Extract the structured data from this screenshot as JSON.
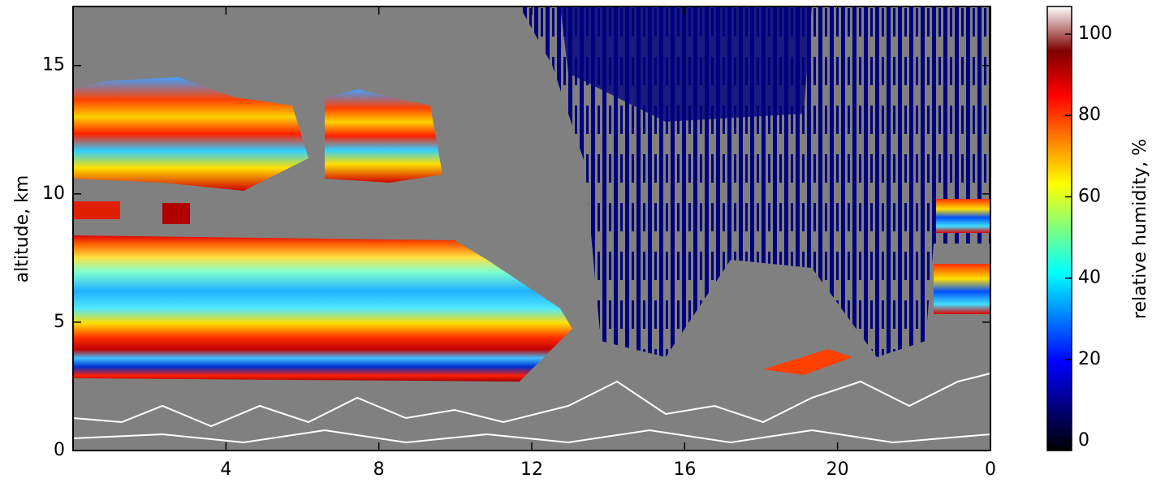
{
  "chart_data": {
    "type": "heatmap",
    "xlim": [
      0,
      24
    ],
    "xticks": [
      4,
      8,
      12,
      16,
      20,
      {
        "value": 24,
        "label": "0"
      }
    ],
    "ylim": [
      0,
      17.3
    ],
    "yticks": [
      0,
      5,
      10,
      15
    ],
    "ylabel": "altitude, km",
    "colorbar": {
      "label": "relative humidity, %",
      "lim": [
        -2.4,
        106.8
      ],
      "ticks": [
        0,
        20,
        40,
        60,
        80,
        100
      ],
      "colormap": [
        "#000000",
        "#00007f",
        "#0000ff",
        "#007fff",
        "#00ffff",
        "#7fff7f",
        "#ffff00",
        "#ff7f00",
        "#ff0000",
        "#7f0000",
        "#ffffff"
      ]
    },
    "background": "#808080"
  }
}
